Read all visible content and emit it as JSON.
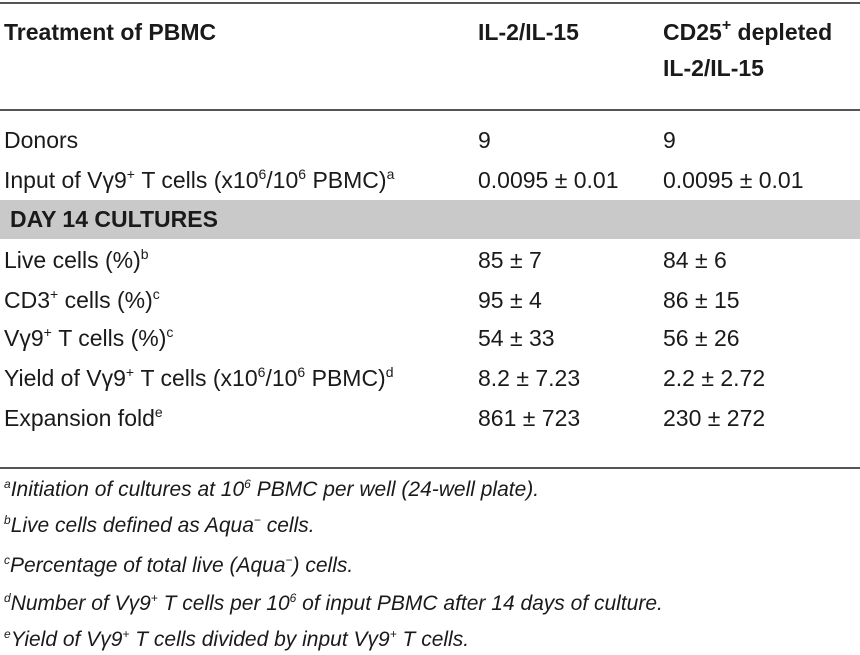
{
  "header": {
    "col1": "Treatment of PBMC",
    "col2": "IL-2/IL-15",
    "col3_line1_pre": "CD25",
    "col3_line1_sup": "+",
    "col3_line1_post": " depleted",
    "col3_line2": "IL-2/IL-15"
  },
  "rows_top": [
    {
      "l_pre": "Donors",
      "c2": "9",
      "c3": "9"
    },
    {
      "l_pre": "Input of Vγ9",
      "l_sup1": "+",
      "l_mid": " T cells (x10",
      "l_sup2": "6",
      "l_mid2": "/10",
      "l_sup3": "6",
      "l_post": " PBMC)",
      "l_note": "a",
      "c2": "0.0095 ± 0.01",
      "c3": "0.0095 ± 0.01"
    }
  ],
  "section_label": "DAY 14 CULTURES",
  "rows_bottom": [
    {
      "l_pre": "Live cells (%)",
      "l_note": "b",
      "c2": "85 ± 7",
      "c3": "84 ± 6"
    },
    {
      "l_pre": "CD3",
      "l_sup1": "+",
      "l_post": " cells (%)",
      "l_note": "c",
      "c2": "95 ± 4",
      "c3": "86 ± 15"
    },
    {
      "l_pre": "Vγ9",
      "l_sup1": "+",
      "l_post": " T cells (%)",
      "l_note": "c",
      "c2": "54 ± 33",
      "c3": "56 ± 26"
    },
    {
      "l_pre": "Yield of Vγ9",
      "l_sup1": "+",
      "l_mid": " T cells (x10",
      "l_sup2": "6",
      "l_mid2": "/10",
      "l_sup3": "6",
      "l_post": " PBMC)",
      "l_note": "d",
      "c2": "8.2 ± 7.23",
      "c3": "2.2 ± 2.72"
    },
    {
      "l_pre": "Expansion fold",
      "l_note": "e",
      "c2": "861 ± 723",
      "c3": "230 ± 272"
    }
  ],
  "footnotes": [
    {
      "mark": "a",
      "pre": "Initiation of cultures at 10",
      "sup": "6",
      "post": " PBMC per well (24-well plate)."
    },
    {
      "mark": "b",
      "pre": "Live cells defined as Aqua",
      "sup": "−",
      "post": " cells."
    },
    {
      "mark": "c",
      "pre": "Percentage of total live (Aqua",
      "sup": "−",
      "post": ") cells."
    },
    {
      "mark": "d",
      "pre": "Number of Vγ9",
      "sup": "+",
      "post": " T cells per 10",
      "sup2": "6",
      "post2": " of input PBMC after 14 days of culture."
    },
    {
      "mark": "e",
      "pre": "Yield of Vγ9",
      "sup": "+",
      "post": " T cells divided by input Vγ9",
      "sup2": "+",
      "post2": " T cells."
    }
  ]
}
